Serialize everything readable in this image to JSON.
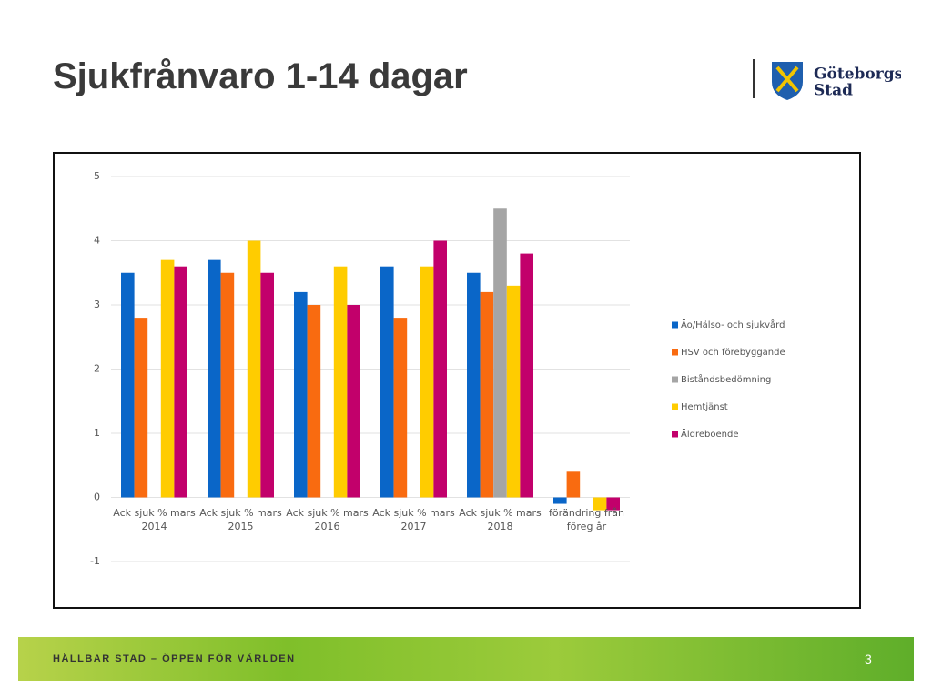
{
  "title": "Sjukfrånvaro 1-14 dagar",
  "logo": {
    "line1": "Göteborgs",
    "line2": "Stad"
  },
  "footer": {
    "text": "HÅLLBAR STAD – ÖPPEN FÖR VÄRLDEN",
    "page": "3"
  },
  "chart_data": {
    "type": "bar",
    "categories": [
      "Ack sjuk % mars 2014",
      "Ack sjuk % mars 2015",
      "Ack sjuk % mars 2016",
      "Ack sjuk % mars 2017",
      "Ack sjuk % mars 2018",
      "förändring från föreg år"
    ],
    "series": [
      {
        "name": "Äo/Hälso- och sjukvård",
        "color": "#0a66c8",
        "values": [
          3.5,
          3.7,
          3.2,
          3.6,
          3.5,
          -0.1
        ]
      },
      {
        "name": "HSV och förebyggande",
        "color": "#f96b10",
        "values": [
          2.8,
          3.5,
          3.0,
          2.8,
          3.2,
          0.4
        ]
      },
      {
        "name": "Biståndsbedömning",
        "color": "#a5a5a5",
        "values": [
          null,
          null,
          null,
          null,
          4.5,
          null
        ]
      },
      {
        "name": "Hemtjänst",
        "color": "#ffcc00",
        "values": [
          3.7,
          4.0,
          3.6,
          3.6,
          3.3,
          -0.2
        ]
      },
      {
        "name": "Äldreboende",
        "color": "#c2006b",
        "values": [
          3.6,
          3.5,
          3.0,
          4.0,
          3.8,
          -0.2
        ]
      }
    ],
    "ylim": [
      -1,
      5
    ],
    "yticks": [
      -1,
      0,
      1,
      2,
      3,
      4,
      5
    ],
    "grid": true,
    "legend": "right"
  }
}
